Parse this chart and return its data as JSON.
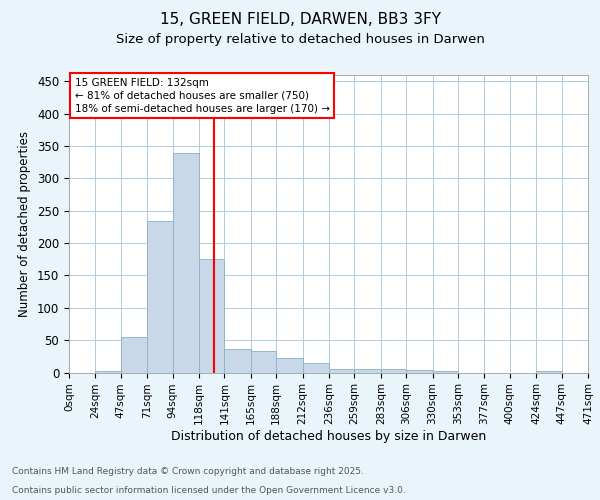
{
  "title1": "15, GREEN FIELD, DARWEN, BB3 3FY",
  "title2": "Size of property relative to detached houses in Darwen",
  "xlabel": "Distribution of detached houses by size in Darwen",
  "ylabel": "Number of detached properties",
  "footnote1": "Contains HM Land Registry data © Crown copyright and database right 2025.",
  "footnote2": "Contains public sector information licensed under the Open Government Licence v3.0.",
  "bin_edges": [
    0,
    24,
    47,
    71,
    94,
    118,
    141,
    165,
    188,
    212,
    236,
    259,
    283,
    306,
    330,
    353,
    377,
    400,
    424,
    447,
    471
  ],
  "bar_heights": [
    0,
    3,
    55,
    235,
    340,
    175,
    37,
    33,
    22,
    14,
    6,
    5,
    5,
    4,
    2,
    0,
    0,
    0,
    3,
    0
  ],
  "bar_color": "#c8d8e8",
  "bar_edge_color": "#8ab0c8",
  "property_size": 132,
  "vline_color": "red",
  "annotation_title": "15 GREEN FIELD: 132sqm",
  "annotation_line1": "← 81% of detached houses are smaller (750)",
  "annotation_line2": "18% of semi-detached houses are larger (170) →",
  "ylim": [
    0,
    460
  ],
  "yticks": [
    0,
    50,
    100,
    150,
    200,
    250,
    300,
    350,
    400,
    450
  ],
  "bg_color": "#eaf4fb",
  "plot_bg_color": "#ffffff",
  "grid_color": "#b0cce0"
}
